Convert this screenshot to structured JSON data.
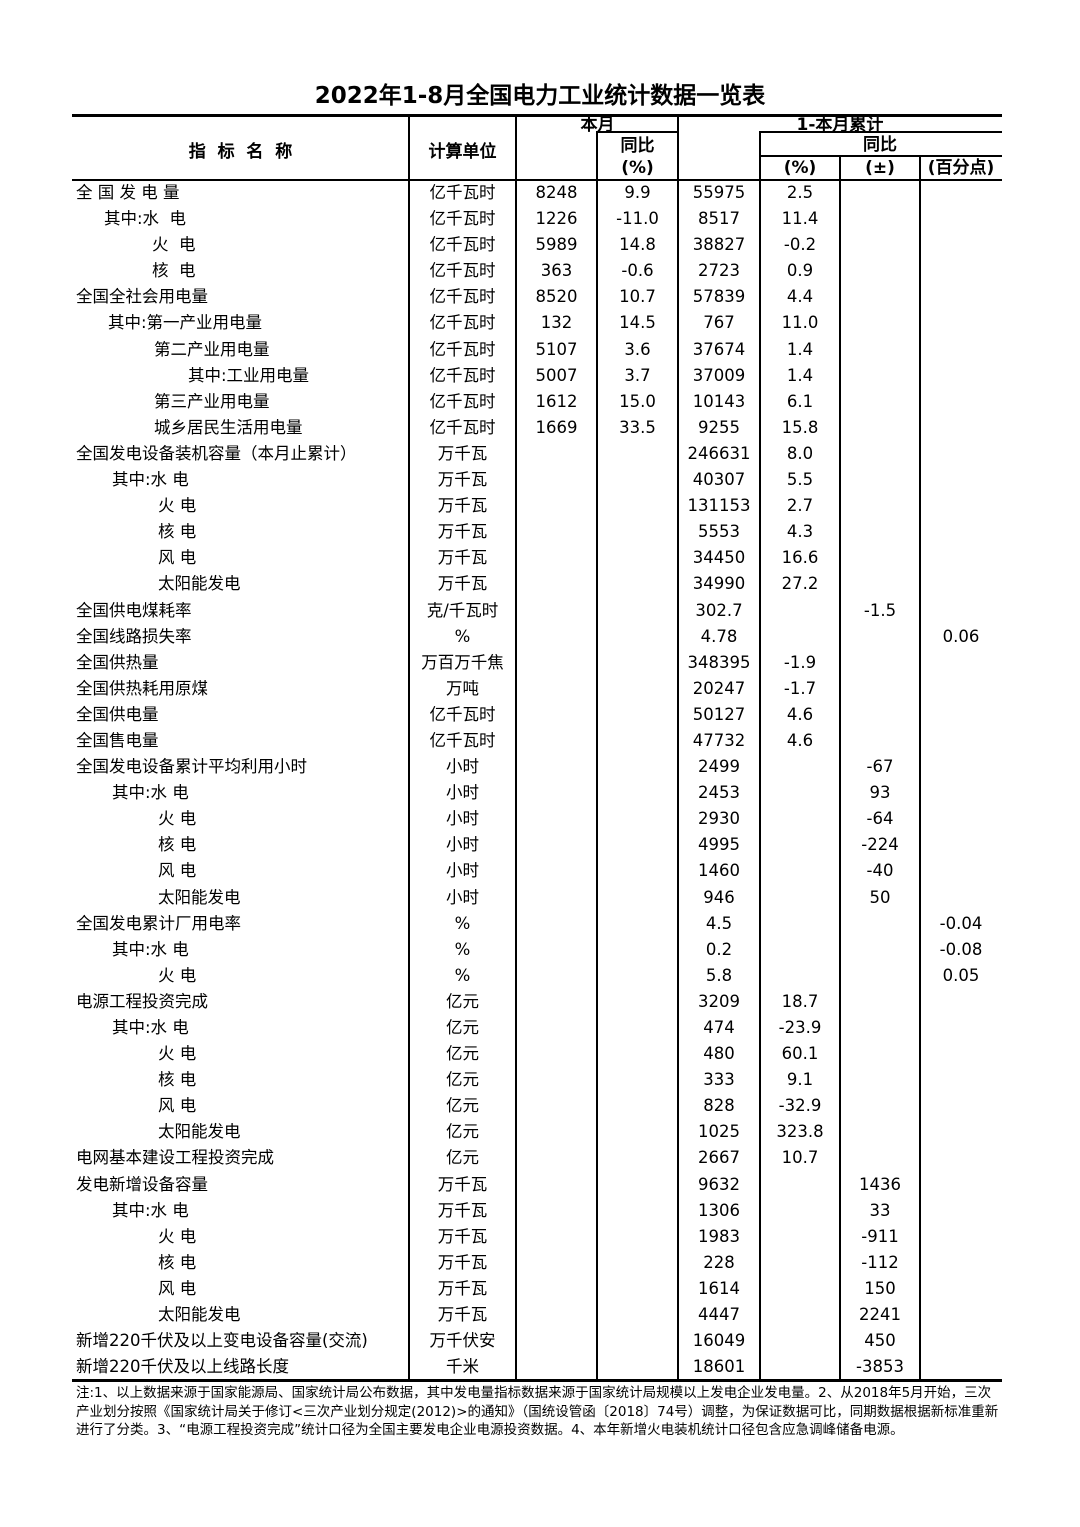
{
  "title": "2022年1-8月全国电力工业统计数据一览表",
  "header": {
    "name": "指  标  名  称",
    "unit": "计算单位",
    "month": "本月",
    "month_yoy": "同比",
    "month_yoy_unit": "(%)",
    "cum": "1-本月累计",
    "cum_yoy": "同比",
    "cum_pct": "(%)",
    "cum_pm": "(±)",
    "cum_pp": "(百分点)"
  },
  "rows": [
    [
      "全 国 发 电 量",
      0,
      "亿千瓦时",
      "8248",
      "9.9",
      "55975",
      "2.5",
      "",
      ""
    ],
    [
      "其中:水  电",
      1,
      "亿千瓦时",
      "1226",
      "-11.0",
      "8517",
      "11.4",
      "",
      ""
    ],
    [
      "火  电",
      3,
      "亿千瓦时",
      "5989",
      "14.8",
      "38827",
      "-0.2",
      "",
      ""
    ],
    [
      "核  电",
      3,
      "亿千瓦时",
      "363",
      "-0.6",
      "2723",
      "0.9",
      "",
      ""
    ],
    [
      "全国全社会用电量",
      0,
      "亿千瓦时",
      "8520",
      "10.7",
      "57839",
      "4.4",
      "",
      ""
    ],
    [
      "其中:第一产业用电量",
      2,
      "亿千瓦时",
      "132",
      "14.5",
      "767",
      "11.0",
      "",
      ""
    ],
    [
      "第二产业用电量",
      4,
      "亿千瓦时",
      "5107",
      "3.6",
      "37674",
      "1.4",
      "",
      ""
    ],
    [
      "其中:工业用电量",
      5,
      "亿千瓦时",
      "5007",
      "3.7",
      "37009",
      "1.4",
      "",
      ""
    ],
    [
      "第三产业用电量",
      4,
      "亿千瓦时",
      "1612",
      "15.0",
      "10143",
      "6.1",
      "",
      ""
    ],
    [
      "城乡居民生活用电量",
      4,
      "亿千瓦时",
      "1669",
      "33.5",
      "9255",
      "15.8",
      "",
      ""
    ],
    [
      "全国发电设备装机容量（本月止累计）",
      0,
      "万千瓦",
      "",
      "",
      "246631",
      "8.0",
      "",
      ""
    ],
    [
      "其中:水 电",
      6,
      "万千瓦",
      "",
      "",
      "40307",
      "5.5",
      "",
      ""
    ],
    [
      "火 电",
      7,
      "万千瓦",
      "",
      "",
      "131153",
      "2.7",
      "",
      ""
    ],
    [
      "核 电",
      7,
      "万千瓦",
      "",
      "",
      "5553",
      "4.3",
      "",
      ""
    ],
    [
      "风 电",
      7,
      "万千瓦",
      "",
      "",
      "34450",
      "16.6",
      "",
      ""
    ],
    [
      "太阳能发电",
      7,
      "万千瓦",
      "",
      "",
      "34990",
      "27.2",
      "",
      ""
    ],
    [
      "全国供电煤耗率",
      0,
      "克/千瓦时",
      "",
      "",
      "302.7",
      "",
      "-1.5",
      ""
    ],
    [
      "全国线路损失率",
      0,
      "%",
      "",
      "",
      "4.78",
      "",
      "",
      "0.06"
    ],
    [
      "全国供热量",
      0,
      "万百万千焦",
      "",
      "",
      "348395",
      "-1.9",
      "",
      ""
    ],
    [
      "全国供热耗用原煤",
      0,
      "万吨",
      "",
      "",
      "20247",
      "-1.7",
      "",
      ""
    ],
    [
      "全国供电量",
      0,
      "亿千瓦时",
      "",
      "",
      "50127",
      "4.6",
      "",
      ""
    ],
    [
      "全国售电量",
      0,
      "亿千瓦时",
      "",
      "",
      "47732",
      "4.6",
      "",
      ""
    ],
    [
      "全国发电设备累计平均利用小时",
      0,
      "小时",
      "",
      "",
      "2499",
      "",
      "-67",
      ""
    ],
    [
      "其中:水 电",
      6,
      "小时",
      "",
      "",
      "2453",
      "",
      "93",
      ""
    ],
    [
      "火 电",
      7,
      "小时",
      "",
      "",
      "2930",
      "",
      "-64",
      ""
    ],
    [
      "核 电",
      7,
      "小时",
      "",
      "",
      "4995",
      "",
      "-224",
      ""
    ],
    [
      "风 电",
      7,
      "小时",
      "",
      "",
      "1460",
      "",
      "-40",
      ""
    ],
    [
      "太阳能发电",
      7,
      "小时",
      "",
      "",
      "946",
      "",
      "50",
      ""
    ],
    [
      "全国发电累计厂用电率",
      0,
      "%",
      "",
      "",
      "4.5",
      "",
      "",
      "-0.04"
    ],
    [
      "其中:水 电",
      6,
      "%",
      "",
      "",
      "0.2",
      "",
      "",
      "-0.08"
    ],
    [
      "火 电",
      7,
      "%",
      "",
      "",
      "5.8",
      "",
      "",
      "0.05"
    ],
    [
      "电源工程投资完成",
      0,
      "亿元",
      "",
      "",
      "3209",
      "18.7",
      "",
      ""
    ],
    [
      "其中:水 电",
      6,
      "亿元",
      "",
      "",
      "474",
      "-23.9",
      "",
      ""
    ],
    [
      "火 电",
      7,
      "亿元",
      "",
      "",
      "480",
      "60.1",
      "",
      ""
    ],
    [
      "核 电",
      7,
      "亿元",
      "",
      "",
      "333",
      "9.1",
      "",
      ""
    ],
    [
      "风 电",
      7,
      "亿元",
      "",
      "",
      "828",
      "-32.9",
      "",
      ""
    ],
    [
      "太阳能发电",
      7,
      "亿元",
      "",
      "",
      "1025",
      "323.8",
      "",
      ""
    ],
    [
      "电网基本建设工程投资完成",
      0,
      "亿元",
      "",
      "",
      "2667",
      "10.7",
      "",
      ""
    ],
    [
      "发电新增设备容量",
      0,
      "万千瓦",
      "",
      "",
      "9632",
      "",
      "1436",
      ""
    ],
    [
      "其中:水 电",
      6,
      "万千瓦",
      "",
      "",
      "1306",
      "",
      "33",
      ""
    ],
    [
      "火 电",
      7,
      "万千瓦",
      "",
      "",
      "1983",
      "",
      "-911",
      ""
    ],
    [
      "核 电",
      7,
      "万千瓦",
      "",
      "",
      "228",
      "",
      "-112",
      ""
    ],
    [
      "风 电",
      7,
      "万千瓦",
      "",
      "",
      "1614",
      "",
      "150",
      ""
    ],
    [
      "太阳能发电",
      7,
      "万千瓦",
      "",
      "",
      "4447",
      "",
      "2241",
      ""
    ],
    [
      "新增220千伏及以上变电设备容量(交流)",
      0,
      "万千伏安",
      "",
      "",
      "16049",
      "",
      "450",
      ""
    ],
    [
      "新增220千伏及以上线路长度",
      0,
      "千米",
      "",
      "",
      "18601",
      "",
      "-3853",
      ""
    ]
  ],
  "note": "注:1、以上数据来源于国家能源局、国家统计局公布数据，其中发电量指标数据来源于国家统计局规模以上发电企业发电量。2、从2018年5月开始，三次产业划分按照《国家统计局关于修订<三次产业划分规定(2012)>的通知》（国统设管函〔2018〕74号）调整，为保证数据可比，同期数据根据新标准重新进行了分类。3、“电源工程投资完成”统计口径为全国主要发电企业电源投资数据。4、本年新增火电装机统计口径包含应急调峰储备电源。"
}
